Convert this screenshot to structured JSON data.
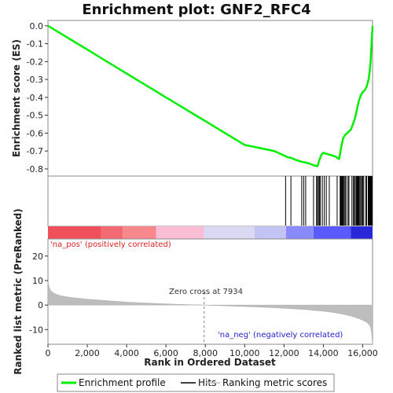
{
  "chart_data": {
    "type": "line",
    "title": "Enrichment plot: GNF2_RFC4",
    "top_panel": {
      "ylabel": "Enrichment score (ES)",
      "ylim": [
        -0.84,
        0.03
      ],
      "yticks": [
        0.0,
        -0.1,
        -0.2,
        -0.3,
        -0.4,
        -0.5,
        -0.6,
        -0.7,
        -0.8
      ],
      "ytick_labels": [
        "0.0",
        "-0.1",
        "-0.2",
        "-0.3",
        "-0.4",
        "-0.5",
        "-0.6",
        "-0.7",
        "-0.8"
      ],
      "series": [
        {
          "name": "Enrichment profile",
          "color": "#00ee00",
          "x": [
            0,
            2000,
            4000,
            6000,
            8000,
            10000,
            11500,
            12000,
            12200,
            12400,
            12600,
            12900,
            13100,
            13300,
            13500,
            13700,
            13800,
            13900,
            14000,
            14300,
            14600,
            14800,
            14900,
            15000,
            15100,
            15200,
            15400,
            15500,
            15600,
            15700,
            15800,
            15900,
            16000,
            16100,
            16200,
            16300,
            16350,
            16400,
            16450,
            16480,
            16500
          ],
          "y": [
            0.0,
            -0.133,
            -0.267,
            -0.4,
            -0.533,
            -0.666,
            -0.7,
            -0.725,
            -0.735,
            -0.74,
            -0.75,
            -0.76,
            -0.765,
            -0.77,
            -0.78,
            -0.785,
            -0.75,
            -0.72,
            -0.71,
            -0.72,
            -0.73,
            -0.745,
            -0.68,
            -0.63,
            -0.61,
            -0.6,
            -0.58,
            -0.55,
            -0.52,
            -0.47,
            -0.42,
            -0.39,
            -0.37,
            -0.36,
            -0.34,
            -0.3,
            -0.26,
            -0.2,
            -0.1,
            -0.04,
            0.0
          ]
        }
      ]
    },
    "hits_panel": {
      "hit_positions": [
        12080,
        12350,
        12900,
        13000,
        13100,
        13500,
        13650,
        13700,
        13750,
        13800,
        13850,
        13950,
        14050,
        14150,
        14300,
        14700,
        14850,
        14880,
        14920,
        14960,
        15000,
        15050,
        15100,
        15150,
        15250,
        15300,
        15450,
        15520,
        15580,
        15620,
        15680,
        15720,
        15760,
        15800,
        15850,
        15900,
        15950,
        16000,
        16050,
        16150,
        16200,
        16280,
        16320,
        16360,
        16400,
        16420,
        16440,
        16460,
        16480
      ]
    },
    "color_bar": {
      "colors": [
        "#f0505a",
        "#f46a72",
        "#f8888c",
        "#fbbdd6",
        "#d9d9f4",
        "#c4c4f4",
        "#8a8aff",
        "#5a5aff",
        "#2828d8"
      ],
      "breaks": [
        0,
        2700,
        3800,
        5500,
        7934,
        10500,
        12100,
        13500,
        15400,
        16500
      ]
    },
    "bottom_panel": {
      "ylabel": "Ranked list metric (PreRanked)",
      "xlabel": "Rank in Ordered Dataset",
      "ylim": [
        -16,
        27
      ],
      "yticks": [
        20,
        10,
        0,
        -10
      ],
      "ytick_labels": [
        "20",
        "10",
        "0",
        "-10"
      ],
      "zero_cross": 7934,
      "zero_cross_label": "Zero cross at 7934",
      "pos_label": "'na_pos' (positively correlated)",
      "neg_label": "'na_neg' (negatively correlated)",
      "x": [
        0,
        50,
        150,
        300,
        600,
        1000,
        2000,
        3000,
        4000,
        5000,
        6000,
        7000,
        7934,
        9000,
        10000,
        11000,
        12000,
        13000,
        14000,
        14500,
        15000,
        15500,
        15800,
        16000,
        16200,
        16300,
        16400,
        16450,
        16480,
        16500
      ],
      "y": [
        9.5,
        7.5,
        5.8,
        4.8,
        3.9,
        3.3,
        2.4,
        1.8,
        1.2,
        0.8,
        0.5,
        0.2,
        0.0,
        -0.3,
        -0.6,
        -0.9,
        -1.3,
        -1.8,
        -2.5,
        -3.0,
        -3.7,
        -4.7,
        -5.5,
        -6.2,
        -7.0,
        -7.8,
        -9.0,
        -11.0,
        -14.0,
        -16.0
      ]
    },
    "xaxis": {
      "xlim": [
        0,
        16500
      ],
      "xticks": [
        0,
        2000,
        4000,
        6000,
        8000,
        10000,
        12000,
        14000,
        16000
      ],
      "xtick_labels": [
        "0",
        "2,000",
        "4,000",
        "6,000",
        "8,000",
        "10,000",
        "12,000",
        "14,000",
        "16,000"
      ]
    },
    "legend": {
      "placement": "bottom",
      "entries": [
        {
          "label": "Enrichment profile",
          "color": "#00ee00"
        },
        {
          "label": "Hits",
          "color": "#000000"
        },
        {
          "label": "Ranking metric scores",
          "color": "#c0c0c0"
        }
      ]
    }
  }
}
